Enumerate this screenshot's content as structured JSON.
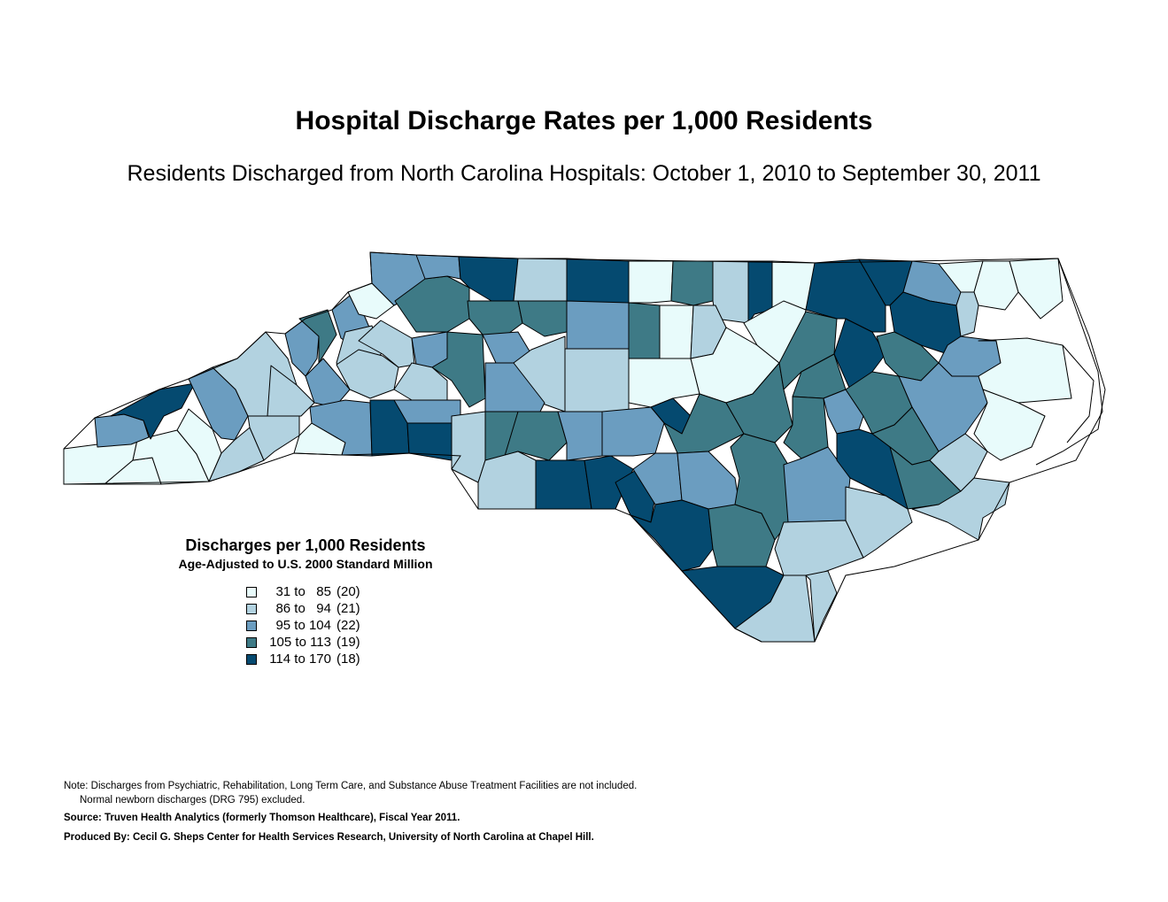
{
  "header": {
    "title": "Hospital Discharge Rates per 1,000 Residents",
    "subtitle": "Residents Discharged from North Carolina Hospitals: October 1, 2010 to September 30, 2011"
  },
  "colors": {
    "c1": "#e8fbfb",
    "c2": "#b2d2e0",
    "c3": "#6b9dc0",
    "c4": "#3e7a86",
    "c5": "#054a70",
    "border": "#000000"
  },
  "legend": {
    "title": "Discharges per 1,000 Residents",
    "subtitle": "Age-Adjusted to U.S. 2000 Standard Million",
    "items": [
      {
        "range": "31 to   85",
        "count": "(20)",
        "color": "#e8fbfb"
      },
      {
        "range": "86 to   94",
        "count": "(21)",
        "color": "#b2d2e0"
      },
      {
        "range": "95 to 104",
        "count": "(22)",
        "color": "#6b9dc0"
      },
      {
        "range": "105 to 113",
        "count": "(19)",
        "color": "#3e7a86"
      },
      {
        "range": "114 to 170",
        "count": "(18)",
        "color": "#054a70"
      }
    ]
  },
  "notes": {
    "note1": "Note: Discharges from Psychiatric, Rehabilitation, Long Term Care, and Substance Abuse Treatment Facilities are not included.",
    "note2": "Normal newborn discharges (DRG 795) excluded.",
    "source": "Source: Truven Health Analytics (formerly Thomson Healthcare), Fiscal Year 2011.",
    "produced": "Produced By:  Cecil G. Sheps Center for Health Services Research, University of North Carolina at Chapel Hill."
  }
}
